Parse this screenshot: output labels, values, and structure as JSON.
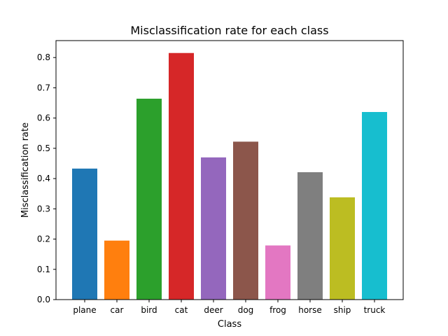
{
  "chart_data": {
    "type": "bar",
    "title": "Misclassification rate for each class",
    "xlabel": "Class",
    "ylabel": "Misclassification rate",
    "categories": [
      "plane",
      "car",
      "bird",
      "cat",
      "deer",
      "dog",
      "frog",
      "horse",
      "ship",
      "truck"
    ],
    "values": [
      0.433,
      0.195,
      0.664,
      0.815,
      0.47,
      0.522,
      0.179,
      0.421,
      0.338,
      0.62
    ],
    "colors": [
      "#1f77b4",
      "#ff7f0e",
      "#2ca02c",
      "#d62728",
      "#9467bd",
      "#8c564b",
      "#e377c2",
      "#7f7f7f",
      "#bcbd22",
      "#17becf"
    ],
    "yticks": [
      "0.0",
      "0.1",
      "0.2",
      "0.3",
      "0.4",
      "0.5",
      "0.6",
      "0.7",
      "0.8"
    ],
    "ylim": [
      0,
      0.856
    ],
    "grid": false,
    "legend": false
  }
}
